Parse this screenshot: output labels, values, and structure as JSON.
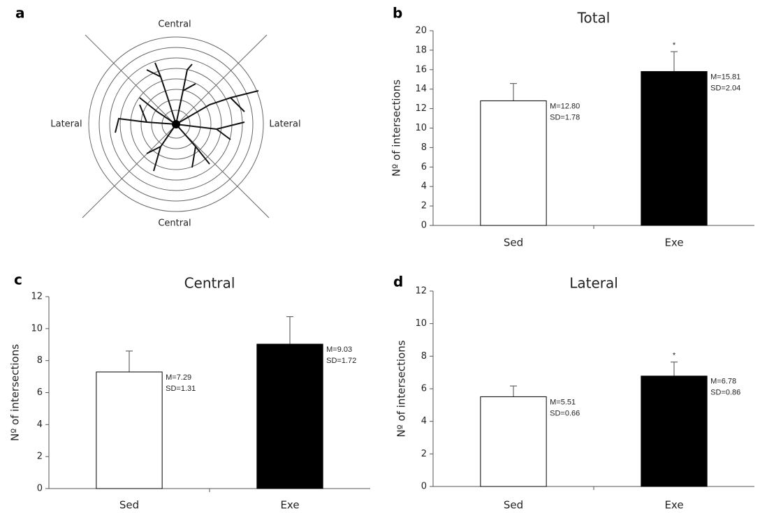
{
  "diagram": {
    "panel": "a",
    "labels": [
      "Central",
      "Lateral",
      "Lateral",
      "Central"
    ]
  },
  "chart_data": [
    {
      "type": "bar",
      "panel": "b",
      "title": "Total",
      "ylabel": "Nº of intersections",
      "categories": [
        "Sed",
        "Exe"
      ],
      "values": [
        12.8,
        15.81
      ],
      "errors": [
        1.78,
        2.04
      ],
      "value_labels": [
        "M=12.80",
        "M=15.81"
      ],
      "error_labels": [
        "SD=1.78",
        "SD=2.04"
      ],
      "colors": [
        "#ffffff",
        "#000000"
      ],
      "annotations": [
        {
          "category": "Exe",
          "text": "*"
        }
      ],
      "ylim": [
        0,
        20
      ],
      "yticks": [
        0,
        2,
        4,
        6,
        8,
        10,
        12,
        14,
        16,
        18,
        20
      ]
    },
    {
      "type": "bar",
      "panel": "c",
      "title": "Central",
      "ylabel": "Nº of intersections",
      "categories": [
        "Sed",
        "Exe"
      ],
      "values": [
        7.29,
        9.03
      ],
      "errors": [
        1.31,
        1.72
      ],
      "value_labels": [
        "M=7.29",
        "M=9.03"
      ],
      "error_labels": [
        "SD=1.31",
        "SD=1.72"
      ],
      "colors": [
        "#ffffff",
        "#000000"
      ],
      "annotations": [],
      "ylim": [
        0,
        12
      ],
      "yticks": [
        0,
        2,
        4,
        6,
        8,
        10,
        12
      ]
    },
    {
      "type": "bar",
      "panel": "d",
      "title": "Lateral",
      "ylabel": "Nº of intersections",
      "categories": [
        "Sed",
        "Exe"
      ],
      "values": [
        5.51,
        6.78
      ],
      "errors": [
        0.66,
        0.86
      ],
      "value_labels": [
        "M=5.51",
        "M=6.78"
      ],
      "error_labels": [
        "SD=0.66",
        "SD=0.86"
      ],
      "colors": [
        "#ffffff",
        "#000000"
      ],
      "annotations": [
        {
          "category": "Exe",
          "text": "*"
        }
      ],
      "ylim": [
        0,
        12
      ],
      "yticks": [
        0,
        2,
        4,
        6,
        8,
        10,
        12
      ]
    }
  ]
}
